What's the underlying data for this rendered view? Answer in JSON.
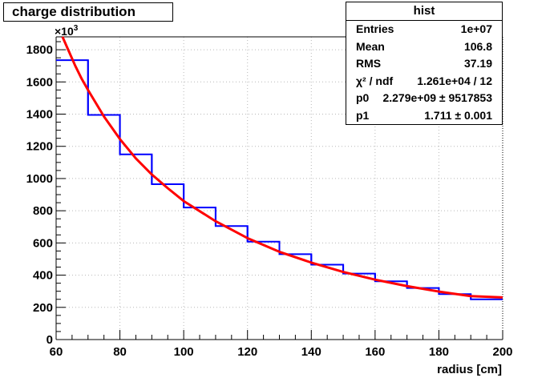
{
  "chart_data": {
    "type": "bar",
    "title": "charge distribution",
    "xlabel": "radius [cm]",
    "ylabel": "",
    "y_multiplier": "×10",
    "y_multiplier_exp": "3",
    "xlim": [
      60,
      200
    ],
    "ylim": [
      0,
      1880
    ],
    "xticks": [
      60,
      80,
      100,
      120,
      140,
      160,
      180,
      200
    ],
    "yticks": [
      0,
      200,
      400,
      600,
      800,
      1000,
      1200,
      1400,
      1600,
      1800
    ],
    "grid": true,
    "bin_edges": [
      60,
      70,
      80,
      90,
      100,
      110,
      120,
      130,
      140,
      150,
      160,
      170,
      180,
      190,
      200
    ],
    "values": [
      1735,
      1395,
      1150,
      965,
      820,
      705,
      608,
      530,
      465,
      410,
      362,
      320,
      282,
      250
    ],
    "fit_curve": {
      "color": "#ff0000",
      "x": [
        62,
        64,
        66,
        68,
        70,
        75,
        80,
        85,
        90,
        95,
        100,
        110,
        120,
        130,
        140,
        150,
        160,
        170,
        180,
        190,
        200
      ],
      "y": [
        1880,
        1790,
        1700,
        1620,
        1550,
        1385,
        1245,
        1125,
        1025,
        940,
        860,
        735,
        630,
        545,
        478,
        420,
        372,
        332,
        298,
        270,
        262
      ]
    },
    "hist_color": "#0000ff",
    "stats": {
      "title": "hist",
      "rows": [
        {
          "label": "Entries",
          "value": "1e+07"
        },
        {
          "label": "Mean",
          "value": "106.8"
        },
        {
          "label": "RMS",
          "value": "37.19"
        },
        {
          "label": "χ² / ndf",
          "value": "1.261e+04 / 12"
        },
        {
          "label": "p0",
          "value": "2.279e+09 ± 9517853"
        },
        {
          "label": "p1",
          "value": "1.711 ± 0.001"
        }
      ]
    }
  }
}
